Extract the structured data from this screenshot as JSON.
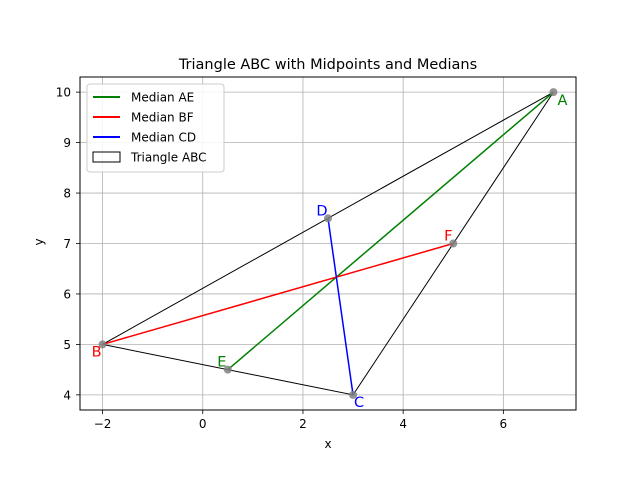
{
  "chart_data": {
    "type": "line",
    "title": "Triangle ABC with Midpoints and Medians",
    "xlabel": "x",
    "ylabel": "y",
    "xlim": [
      -2.45,
      7.45
    ],
    "ylim": [
      3.7,
      10.3
    ],
    "xticks": [
      -2,
      0,
      2,
      4,
      6
    ],
    "yticks": [
      4,
      5,
      6,
      7,
      8,
      9,
      10
    ],
    "grid": true,
    "legend_position": "upper-left",
    "triangle": {
      "name": "Triangle ABC",
      "color": "#000000",
      "vertices": [
        {
          "label": "A",
          "x": 7,
          "y": 10,
          "label_color": "#008000"
        },
        {
          "label": "B",
          "x": -2,
          "y": 5,
          "label_color": "#ff0000"
        },
        {
          "label": "C",
          "x": 3,
          "y": 4,
          "label_color": "#0000ff"
        }
      ]
    },
    "midpoints": [
      {
        "label": "D",
        "x": 2.5,
        "y": 7.5,
        "label_color": "#0000ff"
      },
      {
        "label": "E",
        "x": 0.5,
        "y": 4.5,
        "label_color": "#008000"
      },
      {
        "label": "F",
        "x": 5,
        "y": 7,
        "label_color": "#ff0000"
      }
    ],
    "series": [
      {
        "name": "Median AE",
        "color": "#008000",
        "x": [
          7,
          0.5
        ],
        "y": [
          10,
          4.5
        ]
      },
      {
        "name": "Median BF",
        "color": "#ff0000",
        "x": [
          -2,
          5
        ],
        "y": [
          5,
          7
        ]
      },
      {
        "name": "Median CD",
        "color": "#0000ff",
        "x": [
          3,
          2.5
        ],
        "y": [
          4,
          7.5
        ]
      }
    ]
  }
}
